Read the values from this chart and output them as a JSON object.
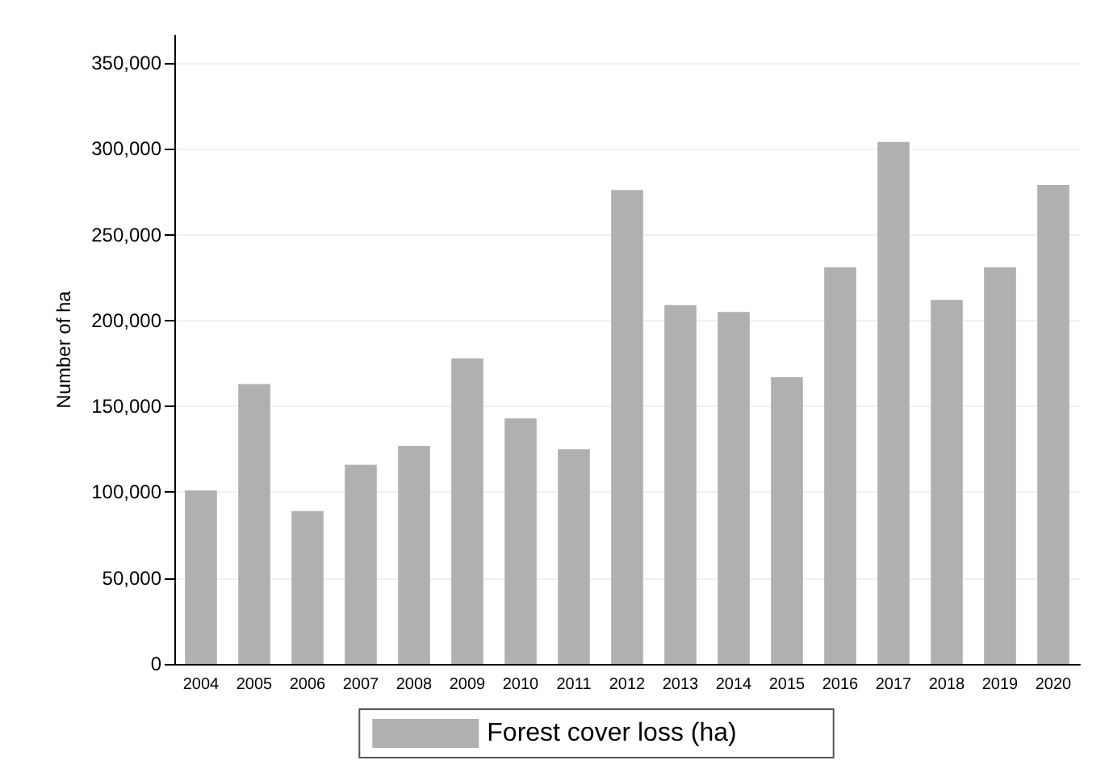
{
  "chart_data": {
    "type": "bar",
    "ylabel": "Number of ha",
    "categories": [
      "2004",
      "2005",
      "2006",
      "2007",
      "2008",
      "2009",
      "2010",
      "2011",
      "2012",
      "2013",
      "2014",
      "2015",
      "2016",
      "2017",
      "2018",
      "2019",
      "2020"
    ],
    "series": [
      {
        "name": "Forest cover loss (ha)",
        "color": "#b0b0b0",
        "values": [
          101000,
          163000,
          89000,
          116000,
          127000,
          178000,
          143000,
          125000,
          276000,
          209000,
          205000,
          167000,
          231000,
          304000,
          212000,
          231000,
          279000
        ]
      }
    ],
    "ylim": [
      0,
      366000
    ],
    "yticks": [
      {
        "value": 0,
        "label": "0"
      },
      {
        "value": 50000,
        "label": "50,000"
      },
      {
        "value": 100000,
        "label": "100,000"
      },
      {
        "value": 150000,
        "label": "150,000"
      },
      {
        "value": 200000,
        "label": "200,000"
      },
      {
        "value": 250000,
        "label": "250,000"
      },
      {
        "value": 300000,
        "label": "300,000"
      },
      {
        "value": 350000,
        "label": "350,000"
      }
    ],
    "grid": "y",
    "legend": "bottom"
  }
}
